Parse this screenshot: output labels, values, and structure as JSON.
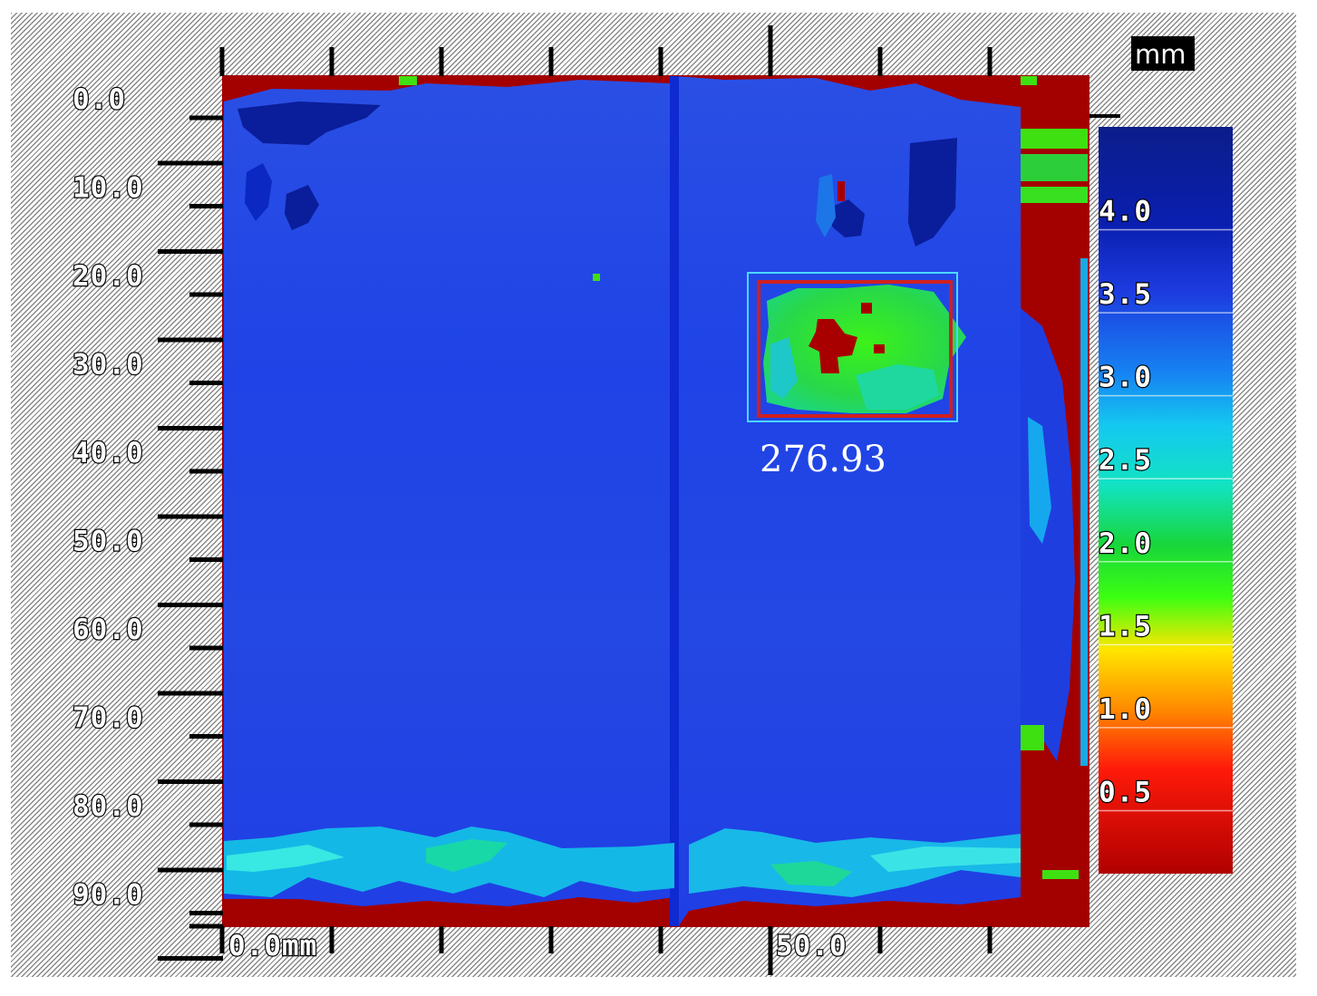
{
  "chart_data": {
    "type": "heatmap",
    "unit_label": "mm",
    "x_axis": {
      "tick_labels": [
        "0.0mm",
        "50.0"
      ],
      "range_mm": [
        0,
        80
      ]
    },
    "y_axis": {
      "tick_labels": [
        "0.0",
        "10.0",
        "20.0",
        "30.0",
        "40.0",
        "50.0",
        "60.0",
        "70.0",
        "80.0",
        "90.0"
      ],
      "range_mm": [
        0,
        95
      ]
    },
    "colorbar": {
      "tick_labels": [
        "4.0",
        "3.5",
        "3.0",
        "2.5",
        "2.0",
        "1.5",
        "1.0",
        "0.5"
      ],
      "range": [
        0,
        4.5
      ],
      "colors": [
        "#0b1d8a",
        "#1d3be0",
        "#14a6f0",
        "#12e3c2",
        "#18d63a",
        "#3cff12",
        "#ffe600",
        "#ff8a00",
        "#ff1a0a",
        "#b00000"
      ]
    },
    "regions": [
      {
        "name": "background",
        "thickness_mm": 3.6
      },
      {
        "name": "defect",
        "thickness_mm": 2.2,
        "x_mm": [
          49,
          65
        ],
        "y_mm": [
          21,
          36
        ]
      },
      {
        "name": "defect-core",
        "thickness_mm": 0.3,
        "x_mm": [
          53,
          56
        ],
        "y_mm": [
          25,
          31
        ]
      },
      {
        "name": "bottom-band",
        "thickness_mm": 2.9,
        "y_mm": [
          85,
          91
        ]
      },
      {
        "name": "right-edge",
        "thickness_mm": 0.2,
        "x_mm": [
          73,
          80
        ]
      }
    ],
    "annotations": [
      {
        "text": "276.93"
      }
    ]
  }
}
